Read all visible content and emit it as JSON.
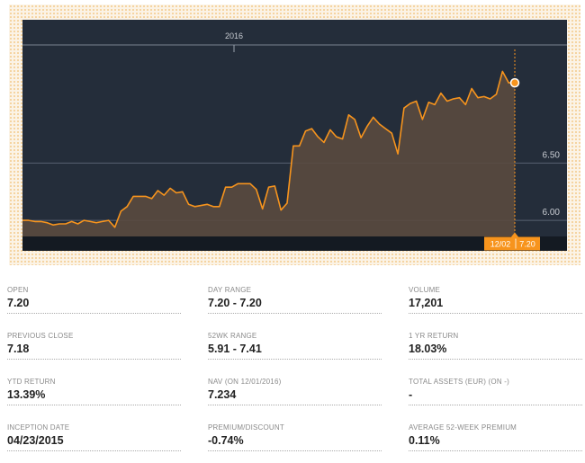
{
  "chart_data": {
    "type": "area",
    "x_label_top": "2016",
    "y_ticks": [
      {
        "value": 6.5,
        "label": "6.50"
      },
      {
        "value": 6.0,
        "label": "6.00"
      }
    ],
    "ylim": [
      5.86,
      7.75
    ],
    "tooltip": {
      "date": "12/02",
      "value": "7.20"
    },
    "colors": {
      "line": "#f7941d",
      "background": "#242d3a",
      "fill": "#5a4a3f"
    },
    "values": [
      6.0,
      6.0,
      5.99,
      5.99,
      5.98,
      5.96,
      5.97,
      5.97,
      5.99,
      5.97,
      6.0,
      5.99,
      5.98,
      5.99,
      6.0,
      5.94,
      6.08,
      6.12,
      6.21,
      6.21,
      6.21,
      6.19,
      6.26,
      6.22,
      6.28,
      6.24,
      6.25,
      6.14,
      6.12,
      6.13,
      6.14,
      6.12,
      6.12,
      6.29,
      6.29,
      6.32,
      6.32,
      6.32,
      6.27,
      6.1,
      6.29,
      6.3,
      6.09,
      6.15,
      6.65,
      6.65,
      6.78,
      6.8,
      6.73,
      6.68,
      6.79,
      6.73,
      6.71,
      6.92,
      6.88,
      6.72,
      6.82,
      6.9,
      6.84,
      6.8,
      6.76,
      6.58,
      6.98,
      7.02,
      7.04,
      6.88,
      7.03,
      7.01,
      7.11,
      7.04,
      7.06,
      7.07,
      7.01,
      7.15,
      7.07,
      7.08,
      7.06,
      7.1,
      7.3,
      7.2,
      7.2
    ]
  },
  "stats": [
    {
      "label": "OPEN",
      "value": "7.20"
    },
    {
      "label": "DAY RANGE",
      "value": "7.20 - 7.20"
    },
    {
      "label": "VOLUME",
      "value": "17,201"
    },
    {
      "label": "PREVIOUS CLOSE",
      "value": "7.18"
    },
    {
      "label": "52WK RANGE",
      "value": "5.91 - 7.41"
    },
    {
      "label": "1 YR RETURN",
      "value": "18.03%"
    },
    {
      "label": "YTD RETURN",
      "value": "13.39%"
    },
    {
      "label": "NAV (ON 12/01/2016)",
      "value": "7.234"
    },
    {
      "label": "TOTAL ASSETS (EUR) (ON -)",
      "value": "-"
    },
    {
      "label": "INCEPTION DATE",
      "value": "04/23/2015"
    },
    {
      "label": "PREMIUM/DISCOUNT",
      "value": "-0.74%"
    },
    {
      "label": "AVERAGE 52-WEEK PREMIUM",
      "value": "0.11%"
    }
  ]
}
